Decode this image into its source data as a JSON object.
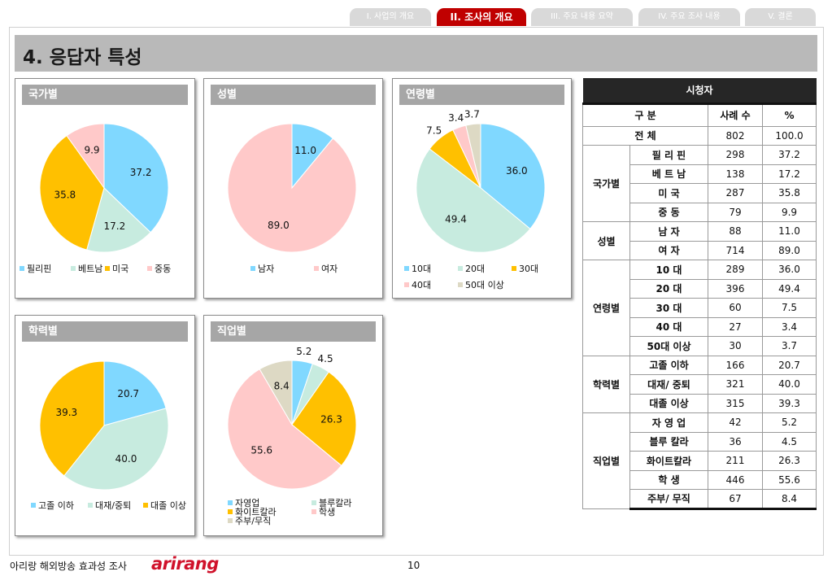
{
  "tabs": [
    {
      "label": "I. 사업의 개요",
      "active": false
    },
    {
      "label": "II. 조사의 개요",
      "active": true
    },
    {
      "label": "III. 주요 내용 요약",
      "active": false
    },
    {
      "label": "IV. 주요 조사 내용",
      "active": false
    },
    {
      "label": "V. 결론",
      "active": false
    }
  ],
  "page_title": "4. 응답자 특성",
  "colors": {
    "accent": "#c00000",
    "title_bar": "#b9b9b9",
    "panel_head": "#a6a6a6",
    "table_head": "#262626"
  },
  "chart_data": [
    {
      "type": "pie",
      "title": "국가별",
      "categories": [
        "필리핀",
        "베트남",
        "미국",
        "중동"
      ],
      "values": [
        37.2,
        17.2,
        35.8,
        9.9
      ],
      "colors": [
        "#80d8ff",
        "#c7ebdf",
        "#ffc000",
        "#ffc9c9"
      ],
      "legend": "bottom"
    },
    {
      "type": "pie",
      "title": "성별",
      "categories": [
        "남자",
        "여자"
      ],
      "values": [
        11.0,
        89.0
      ],
      "colors": [
        "#80d8ff",
        "#ffc9c9"
      ],
      "legend": "bottom"
    },
    {
      "type": "pie",
      "title": "연령별",
      "categories": [
        "10대",
        "20대",
        "30대",
        "40대",
        "50대 이상"
      ],
      "values": [
        36.0,
        49.4,
        7.5,
        3.4,
        3.7
      ],
      "colors": [
        "#80d8ff",
        "#c7ebdf",
        "#ffc000",
        "#ffc9c9",
        "#ddd9c4"
      ],
      "legend": "bottom"
    },
    {
      "type": "pie",
      "title": "학력별",
      "categories": [
        "고졸 이하",
        "대재/중퇴",
        "대졸 이상"
      ],
      "values": [
        20.7,
        40.0,
        39.3
      ],
      "colors": [
        "#80d8ff",
        "#c7ebdf",
        "#ffc000"
      ],
      "legend": "bottom"
    },
    {
      "type": "pie",
      "title": "직업별",
      "categories": [
        "자영업",
        "블루칼라",
        "화이트칼라",
        "학생",
        "주부/무직"
      ],
      "values": [
        5.2,
        4.5,
        26.3,
        55.6,
        8.4
      ],
      "colors": [
        "#80d8ff",
        "#c7ebdf",
        "#ffc000",
        "#ffc9c9",
        "#ddd9c4"
      ],
      "legend": "bottom"
    }
  ],
  "table": {
    "title": "시청자",
    "headers": [
      "구 분",
      "사례 수",
      "%"
    ],
    "total": {
      "label": "전 체",
      "n": "802",
      "pct": "100.0"
    },
    "groups": [
      {
        "name": "국가별",
        "rows": [
          [
            "필 리 핀",
            "298",
            "37.2"
          ],
          [
            "베 트 남",
            "138",
            "17.2"
          ],
          [
            "미 국",
            "287",
            "35.8"
          ],
          [
            "중 동",
            "79",
            "9.9"
          ]
        ]
      },
      {
        "name": "성별",
        "rows": [
          [
            "남 자",
            "88",
            "11.0"
          ],
          [
            "여 자",
            "714",
            "89.0"
          ]
        ]
      },
      {
        "name": "연령별",
        "rows": [
          [
            "10 대",
            "289",
            "36.0"
          ],
          [
            "20 대",
            "396",
            "49.4"
          ],
          [
            "30 대",
            "60",
            "7.5"
          ],
          [
            "40 대",
            "27",
            "3.4"
          ],
          [
            "50대 이상",
            "30",
            "3.7"
          ]
        ]
      },
      {
        "name": "학력별",
        "rows": [
          [
            "고졸 이하",
            "166",
            "20.7"
          ],
          [
            "대재/ 중퇴",
            "321",
            "40.0"
          ],
          [
            "대졸 이상",
            "315",
            "39.3"
          ]
        ]
      },
      {
        "name": "직업별",
        "rows": [
          [
            "자 영 업",
            "42",
            "5.2"
          ],
          [
            "블루 칼라",
            "36",
            "4.5"
          ],
          [
            "화이트칼라",
            "211",
            "26.3"
          ],
          [
            "학 생",
            "446",
            "55.6"
          ],
          [
            "주부/ 무직",
            "67",
            "8.4"
          ]
        ]
      }
    ]
  },
  "footer": {
    "text": "아리랑 해외방송 효과성 조사",
    "logo": "arirang",
    "page_number": "10"
  }
}
